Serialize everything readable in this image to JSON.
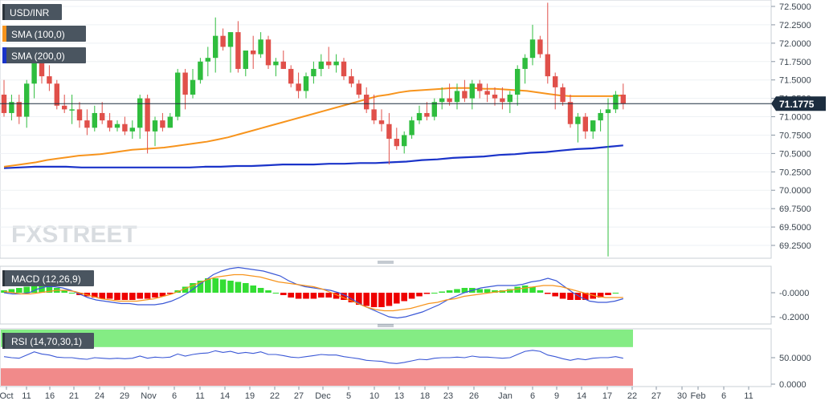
{
  "chart_data": [
    {
      "type": "candlestick",
      "title": "USD/INR",
      "indicators": [
        {
          "name": "SMA (100,0)",
          "color": "#f7941d"
        },
        {
          "name": "SMA (200,0)",
          "color": "#1a33c9"
        }
      ],
      "ylim": [
        69.05,
        72.55
      ],
      "yticks": [
        "72.5000",
        "72.2500",
        "72.0000",
        "71.7500",
        "71.5000",
        "71.2500",
        "71.0000",
        "70.7500",
        "70.5000",
        "70.2500",
        "70.0000",
        "69.7500",
        "69.5000",
        "69.2500"
      ],
      "last_price": "71.1775",
      "x_tick_labels": [
        "Oct",
        "11",
        "16",
        "21",
        "24",
        "29",
        "Nov",
        "6",
        "11",
        "14",
        "19",
        "22",
        "27",
        "Dec",
        "5",
        "10",
        "13",
        "18",
        "23",
        "26",
        "Jan",
        "6",
        "9",
        "14",
        "17",
        "22",
        "27",
        "30",
        "Feb",
        "6",
        "11"
      ],
      "candles": [
        [
          71.3,
          71.5,
          71.0,
          71.05
        ],
        [
          71.05,
          71.3,
          70.95,
          71.2
        ],
        [
          71.2,
          71.3,
          70.9,
          71.0
        ],
        [
          71.0,
          71.5,
          70.85,
          71.45
        ],
        [
          71.45,
          71.85,
          71.25,
          71.8
        ],
        [
          71.8,
          71.85,
          71.45,
          71.55
        ],
        [
          71.55,
          71.7,
          71.35,
          71.45
        ],
        [
          71.45,
          71.5,
          71.1,
          71.15
        ],
        [
          71.15,
          71.3,
          71.05,
          71.1
        ],
        [
          71.1,
          71.3,
          70.9,
          71.1
        ],
        [
          71.1,
          71.2,
          70.85,
          70.95
        ],
        [
          70.95,
          71.1,
          70.75,
          70.85
        ],
        [
          70.85,
          71.15,
          70.8,
          71.05
        ],
        [
          71.05,
          71.2,
          70.9,
          70.95
        ],
        [
          70.95,
          71.05,
          70.8,
          70.85
        ],
        [
          70.85,
          70.95,
          70.8,
          70.9
        ],
        [
          70.9,
          71.0,
          70.75,
          70.8
        ],
        [
          70.8,
          70.95,
          70.7,
          70.85
        ],
        [
          70.85,
          71.3,
          70.7,
          71.25
        ],
        [
          71.25,
          71.3,
          70.5,
          70.8
        ],
        [
          70.8,
          71.0,
          70.6,
          70.95
        ],
        [
          70.95,
          71.05,
          70.8,
          70.85
        ],
        [
          70.85,
          71.05,
          70.85,
          71.0
        ],
        [
          71.0,
          71.65,
          70.95,
          71.6
        ],
        [
          71.6,
          71.65,
          71.1,
          71.3
        ],
        [
          71.3,
          71.65,
          71.25,
          71.5
        ],
        [
          71.5,
          71.8,
          71.45,
          71.75
        ],
        [
          71.75,
          71.95,
          71.55,
          71.8
        ],
        [
          71.8,
          72.35,
          71.6,
          72.1
        ],
        [
          72.1,
          72.2,
          71.9,
          71.95
        ],
        [
          71.95,
          72.15,
          71.6,
          72.15
        ],
        [
          72.15,
          72.3,
          71.6,
          71.65
        ],
        [
          71.65,
          71.9,
          71.55,
          71.9
        ],
        [
          71.9,
          72.1,
          71.65,
          71.85
        ],
        [
          71.85,
          72.15,
          71.8,
          72.05
        ],
        [
          72.05,
          72.1,
          71.65,
          71.7
        ],
        [
          71.7,
          71.8,
          71.55,
          71.75
        ],
        [
          71.75,
          71.9,
          71.65,
          71.65
        ],
        [
          71.65,
          71.7,
          71.4,
          71.45
        ],
        [
          71.45,
          71.6,
          71.25,
          71.35
        ],
        [
          71.35,
          71.6,
          71.25,
          71.55
        ],
        [
          71.55,
          71.75,
          71.45,
          71.65
        ],
        [
          71.65,
          71.85,
          71.55,
          71.75
        ],
        [
          71.75,
          71.95,
          71.65,
          71.7
        ],
        [
          71.7,
          71.85,
          71.6,
          71.75
        ],
        [
          71.75,
          71.8,
          71.5,
          71.55
        ],
        [
          71.55,
          71.65,
          71.4,
          71.45
        ],
        [
          71.45,
          71.5,
          71.25,
          71.3
        ],
        [
          71.3,
          71.4,
          71.05,
          71.1
        ],
        [
          71.1,
          71.3,
          70.9,
          70.95
        ],
        [
          70.95,
          71.1,
          70.8,
          70.9
        ],
        [
          70.9,
          71.05,
          70.35,
          70.7
        ],
        [
          70.7,
          70.85,
          70.55,
          70.6
        ],
        [
          70.6,
          70.8,
          70.5,
          70.75
        ],
        [
          70.75,
          71.0,
          70.7,
          70.95
        ],
        [
          70.95,
          71.15,
          70.9,
          71.05
        ],
        [
          71.05,
          71.2,
          70.95,
          71.0
        ],
        [
          71.0,
          71.25,
          70.95,
          71.2
        ],
        [
          71.2,
          71.4,
          71.1,
          71.25
        ],
        [
          71.25,
          71.45,
          71.15,
          71.2
        ],
        [
          71.2,
          71.45,
          71.1,
          71.35
        ],
        [
          71.35,
          71.5,
          71.2,
          71.25
        ],
        [
          71.25,
          71.5,
          71.1,
          71.45
        ],
        [
          71.45,
          71.5,
          71.25,
          71.35
        ],
        [
          71.35,
          71.45,
          71.2,
          71.3
        ],
        [
          71.3,
          71.4,
          71.15,
          71.25
        ],
        [
          71.25,
          71.4,
          71.1,
          71.2
        ],
        [
          71.2,
          71.35,
          71.05,
          71.3
        ],
        [
          71.3,
          71.7,
          71.15,
          71.65
        ],
        [
          71.65,
          71.85,
          71.45,
          71.8
        ],
        [
          71.8,
          72.25,
          71.7,
          72.05
        ],
        [
          72.05,
          72.1,
          71.8,
          71.85
        ],
        [
          71.85,
          72.55,
          71.45,
          71.55
        ],
        [
          71.55,
          71.6,
          71.1,
          71.4
        ],
        [
          71.4,
          71.45,
          71.15,
          71.2
        ],
        [
          71.2,
          71.3,
          70.85,
          70.9
        ],
        [
          70.9,
          71.05,
          70.65,
          71.0
        ],
        [
          71.0,
          71.05,
          70.7,
          70.8
        ],
        [
          70.8,
          70.95,
          70.7,
          70.95
        ],
        [
          70.95,
          71.1,
          70.8,
          71.05
        ],
        [
          71.05,
          71.25,
          69.1,
          71.1
        ],
        [
          71.1,
          71.35,
          71.05,
          71.3
        ],
        [
          71.3,
          71.45,
          71.1,
          71.1775
        ]
      ],
      "sma_100": [
        70.32,
        70.34,
        70.36,
        70.38,
        70.41,
        70.43,
        70.45,
        70.47,
        70.48,
        70.49,
        70.51,
        70.53,
        70.55,
        70.56,
        70.57,
        70.58,
        70.6,
        70.62,
        70.64,
        70.66,
        70.69,
        70.72,
        70.76,
        70.8,
        70.84,
        70.88,
        70.92,
        70.96,
        71.0,
        71.04,
        71.08,
        71.12,
        71.16,
        71.2,
        71.24,
        71.28,
        71.3,
        71.33,
        71.35,
        71.36,
        71.37,
        71.38,
        71.39,
        71.39,
        71.39,
        71.38,
        71.38,
        71.37,
        71.36,
        71.35,
        71.33,
        71.31,
        71.29,
        71.28,
        71.28,
        71.28,
        71.28,
        71.28,
        71.29
      ],
      "sma_200": [
        70.3,
        70.31,
        70.32,
        70.32,
        70.32,
        70.31,
        70.31,
        70.31,
        70.31,
        70.31,
        70.31,
        70.31,
        70.31,
        70.32,
        70.32,
        70.33,
        70.33,
        70.34,
        70.35,
        70.35,
        70.35,
        70.36,
        70.36,
        70.37,
        70.37,
        70.38,
        70.39,
        70.41,
        70.42,
        70.44,
        70.45,
        70.46,
        70.48,
        70.49,
        70.51,
        70.52,
        70.54,
        70.56,
        70.57,
        70.59,
        70.61
      ],
      "xlabel": "",
      "ylabel": ""
    },
    {
      "type": "bar",
      "title": "MACD (12,26,9)",
      "yticks": [
        "-0.0000",
        "-0.2000"
      ],
      "ylim": [
        -0.26,
        0.22
      ],
      "histogram": [
        0.02,
        0.03,
        0.04,
        0.05,
        0.06,
        0.06,
        0.05,
        0.04,
        0.02,
        0.0,
        -0.02,
        -0.03,
        -0.04,
        -0.05,
        -0.05,
        -0.06,
        -0.06,
        -0.06,
        -0.05,
        -0.05,
        -0.04,
        -0.03,
        -0.01,
        0.02,
        0.05,
        0.08,
        0.1,
        0.12,
        0.12,
        0.11,
        0.1,
        0.09,
        0.08,
        0.06,
        0.04,
        0.02,
        0.0,
        -0.02,
        -0.04,
        -0.05,
        -0.05,
        -0.05,
        -0.04,
        -0.04,
        -0.05,
        -0.06,
        -0.08,
        -0.1,
        -0.11,
        -0.12,
        -0.12,
        -0.11,
        -0.09,
        -0.07,
        -0.05,
        -0.03,
        -0.01,
        0.0,
        0.01,
        0.02,
        0.03,
        0.04,
        0.04,
        0.03,
        0.03,
        0.02,
        0.02,
        0.03,
        0.05,
        0.06,
        0.05,
        0.02,
        -0.01,
        -0.03,
        -0.05,
        -0.06,
        -0.06,
        -0.06,
        -0.05,
        -0.04,
        -0.02,
        0.0
      ],
      "macd_line": [
        0.0,
        -0.01,
        -0.01,
        0.0,
        0.03,
        0.05,
        0.05,
        0.04,
        0.02,
        -0.01,
        -0.04,
        -0.06,
        -0.07,
        -0.08,
        -0.09,
        -0.09,
        -0.1,
        -0.1,
        -0.1,
        -0.09,
        -0.07,
        -0.04,
        0.0,
        0.05,
        0.1,
        0.15,
        0.18,
        0.2,
        0.21,
        0.2,
        0.19,
        0.18,
        0.16,
        0.14,
        0.1,
        0.07,
        0.05,
        0.04,
        0.03,
        0.02,
        0.0,
        -0.03,
        -0.07,
        -0.11,
        -0.14,
        -0.17,
        -0.2,
        -0.21,
        -0.2,
        -0.18,
        -0.16,
        -0.13,
        -0.1,
        -0.06,
        -0.03,
        0.0,
        0.02,
        0.04,
        0.05,
        0.06,
        0.06,
        0.06,
        0.07,
        0.09,
        0.1,
        0.12,
        0.1,
        0.05,
        0.0,
        -0.04,
        -0.07,
        -0.08,
        -0.08,
        -0.07,
        -0.05
      ],
      "signal_line": [
        0.01,
        0.0,
        -0.01,
        -0.01,
        0.0,
        0.01,
        0.02,
        0.02,
        0.01,
        -0.01,
        -0.03,
        -0.05,
        -0.06,
        -0.07,
        -0.07,
        -0.07,
        -0.06,
        -0.05,
        -0.03,
        -0.01,
        0.02,
        0.05,
        0.08,
        0.11,
        0.13,
        0.14,
        0.15,
        0.15,
        0.14,
        0.13,
        0.11,
        0.09,
        0.08,
        0.07,
        0.06,
        0.05,
        0.03,
        0.0,
        -0.03,
        -0.06,
        -0.09,
        -0.12,
        -0.14,
        -0.15,
        -0.15,
        -0.14,
        -0.13,
        -0.11,
        -0.09,
        -0.08,
        -0.06,
        -0.05,
        -0.03,
        -0.02,
        -0.01,
        0.0,
        0.01,
        0.02,
        0.03,
        0.04,
        0.05,
        0.06,
        0.06,
        0.05,
        0.03,
        0.01,
        -0.01,
        -0.03,
        -0.04,
        -0.04,
        -0.04
      ]
    },
    {
      "type": "line",
      "title": "RSI (14,70,30,1)",
      "yticks": [
        "50.0000",
        "0.0000"
      ],
      "ylim": [
        0,
        100
      ],
      "overbought": 70,
      "oversold": 30,
      "rsi": [
        52,
        50,
        49,
        55,
        61,
        57,
        55,
        51,
        50,
        50,
        48,
        47,
        50,
        49,
        48,
        49,
        48,
        49,
        53,
        49,
        51,
        50,
        51,
        57,
        53,
        56,
        58,
        59,
        63,
        60,
        62,
        58,
        60,
        58,
        61,
        56,
        56,
        54,
        51,
        50,
        52,
        54,
        56,
        55,
        55,
        52,
        50,
        48,
        45,
        44,
        43,
        40,
        39,
        41,
        44,
        47,
        46,
        49,
        50,
        50,
        51,
        50,
        53,
        51,
        51,
        50,
        49,
        50,
        56,
        62,
        64,
        62,
        55,
        52,
        48,
        45,
        48,
        46,
        49,
        50,
        50,
        52,
        49
      ]
    }
  ],
  "ui": {
    "watermark": "FXSTREET",
    "colors": {
      "bull": "#2fbd3e",
      "bear": "#e0504a",
      "price_line": "#1c2d3f",
      "macd_hist_up": "#33dd33",
      "macd_hist_down": "#ee0000",
      "macd_line": "#3b58d6",
      "signal_line": "#f7941d",
      "rsi_line": "#3b58d6",
      "rsi_overbought": "#6ee96e",
      "rsi_oversold": "#f07d7d"
    }
  }
}
